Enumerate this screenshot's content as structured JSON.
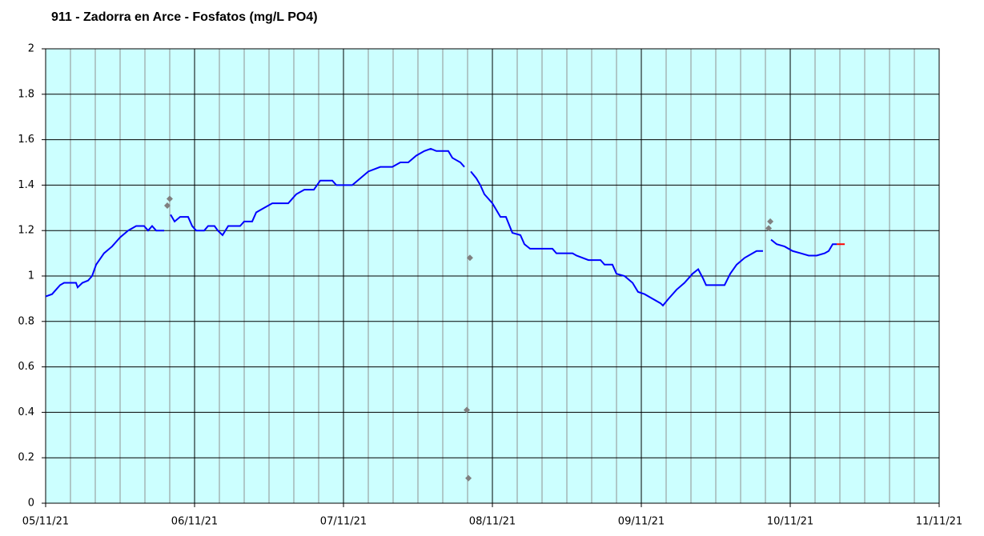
{
  "chart_data": {
    "type": "line",
    "title": "911 - Zadorra en Arce - Fosfatos (mg/L PO4)",
    "xlim": [
      5,
      11
    ],
    "xticks": [
      {
        "value": 5,
        "label": "05/11/21"
      },
      {
        "value": 6,
        "label": "06/11/21"
      },
      {
        "value": 7,
        "label": "07/11/21"
      },
      {
        "value": 8,
        "label": "08/11/21"
      },
      {
        "value": 9,
        "label": "09/11/21"
      },
      {
        "value": 10,
        "label": "10/11/21"
      },
      {
        "value": 11,
        "label": "11/11/21"
      }
    ],
    "x_minor_divisions": 6,
    "ylim": [
      0,
      2
    ],
    "yticks": [
      0,
      0.2,
      0.4,
      0.6,
      0.8,
      1,
      1.2,
      1.4,
      1.6,
      1.8,
      2
    ],
    "grid": true,
    "background": "#ccffff",
    "series": [
      {
        "type": "line",
        "color": "#0000ff",
        "x": [
          5,
          5.043,
          5.097,
          5.124,
          5.204,
          5.215,
          5.247,
          5.285,
          5.312,
          5.339,
          5.392,
          5.446,
          5.5,
          5.554,
          5.608,
          5.661,
          5.688,
          5.715,
          5.742,
          5.796,
          null,
          5.839,
          5.866,
          5.903,
          5.957,
          5.984,
          6.011,
          6.065,
          6.091,
          6.134,
          6.156,
          6.188,
          6.226,
          6.306,
          6.333,
          6.387,
          6.414,
          6.468,
          6.522,
          6.629,
          6.656,
          6.683,
          6.737,
          6.801,
          6.844,
          6.925,
          6.952,
          7.059,
          7.113,
          7.167,
          7.247,
          7.328,
          7.382,
          7.435,
          7.489,
          7.543,
          7.586,
          7.624,
          7.704,
          7.731,
          7.785,
          7.812,
          null,
          7.855,
          7.892,
          7.919,
          7.946,
          8.0,
          8.054,
          8.091,
          8.134,
          8.188,
          8.215,
          8.253,
          8.403,
          8.43,
          8.538,
          8.565,
          8.645,
          8.726,
          8.753,
          8.806,
          8.833,
          8.887,
          8.941,
          8.978,
          9.022,
          9.075,
          9.129,
          9.145,
          9.183,
          9.237,
          9.29,
          9.344,
          9.382,
          9.414,
          9.435,
          9.559,
          9.597,
          9.64,
          9.694,
          9.747,
          9.774,
          9.817,
          null,
          9.871,
          9.909,
          9.962,
          10.016,
          10.07,
          10.124,
          10.177,
          10.231,
          10.258,
          10.285,
          10.312
        ],
        "values": [
          0.91,
          0.92,
          0.96,
          0.97,
          0.97,
          0.95,
          0.97,
          0.98,
          1.0,
          1.05,
          1.1,
          1.13,
          1.17,
          1.2,
          1.22,
          1.22,
          1.2,
          1.22,
          1.2,
          1.2,
          null,
          1.27,
          1.24,
          1.26,
          1.26,
          1.22,
          1.2,
          1.2,
          1.22,
          1.22,
          1.2,
          1.18,
          1.22,
          1.22,
          1.24,
          1.24,
          1.28,
          1.3,
          1.32,
          1.32,
          1.34,
          1.36,
          1.38,
          1.38,
          1.42,
          1.42,
          1.4,
          1.4,
          1.43,
          1.46,
          1.48,
          1.48,
          1.5,
          1.5,
          1.53,
          1.55,
          1.56,
          1.55,
          1.55,
          1.52,
          1.5,
          1.48,
          null,
          1.46,
          1.43,
          1.4,
          1.36,
          1.32,
          1.26,
          1.26,
          1.19,
          1.18,
          1.14,
          1.12,
          1.12,
          1.1,
          1.1,
          1.09,
          1.07,
          1.07,
          1.05,
          1.05,
          1.01,
          1.0,
          0.97,
          0.93,
          0.92,
          0.9,
          0.88,
          0.87,
          0.9,
          0.94,
          0.97,
          1.01,
          1.03,
          0.99,
          0.96,
          0.96,
          1.01,
          1.05,
          1.08,
          1.1,
          1.11,
          1.11,
          null,
          1.16,
          1.14,
          1.13,
          1.11,
          1.1,
          1.09,
          1.09,
          1.1,
          1.11,
          1.14,
          1.14
        ]
      },
      {
        "type": "line",
        "color": "#ff0000",
        "x": [
          10.312,
          10.366
        ],
        "values": [
          1.14,
          1.14
        ]
      },
      {
        "type": "scatter",
        "color": "#808080",
        "x": [
          5.817,
          5.833,
          7.849,
          7.828,
          7.839,
          9.855,
          9.866
        ],
        "values": [
          1.31,
          1.34,
          1.08,
          0.41,
          0.11,
          1.21,
          1.24
        ]
      }
    ]
  }
}
